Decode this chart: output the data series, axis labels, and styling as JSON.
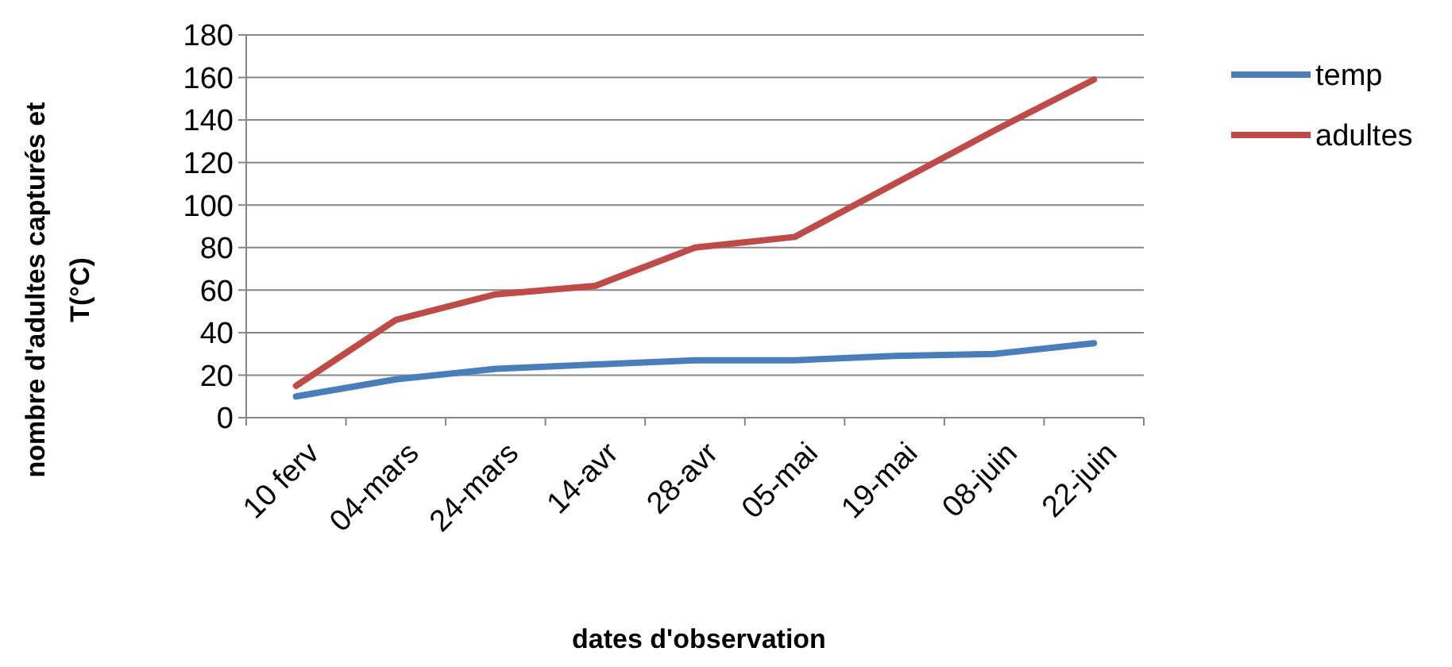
{
  "chart_data": {
    "type": "line",
    "xlabel": "dates d'observation",
    "ylabel": "nombre d'adultes capturés et T(°C)",
    "categories": [
      "10 ferv",
      "04-mars",
      "24-mars",
      "14-avr",
      "28-avr",
      "05-mai",
      "19-mai",
      "08-juin",
      "22-juin"
    ],
    "series": [
      {
        "name": "temp",
        "color": "#4a7ebb",
        "values": [
          10,
          18,
          23,
          25,
          27,
          27,
          29,
          30,
          35
        ]
      },
      {
        "name": "adultes",
        "color": "#be4b48",
        "values": [
          15,
          46,
          58,
          62,
          80,
          85,
          110,
          135,
          159
        ]
      }
    ],
    "ylim": [
      0,
      180
    ],
    "yticks": [
      0,
      20,
      40,
      60,
      80,
      100,
      120,
      140,
      160,
      180
    ],
    "grid": "y",
    "legend": "right",
    "line_style": "solid"
  }
}
